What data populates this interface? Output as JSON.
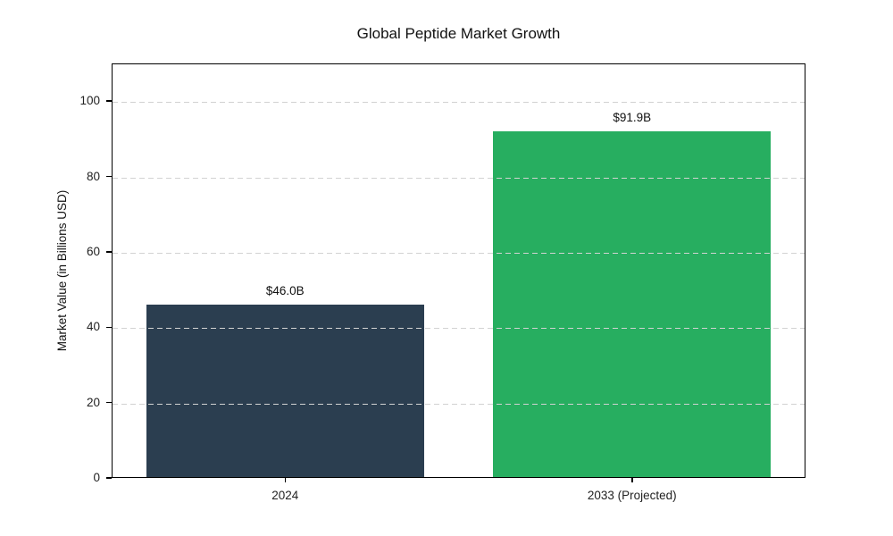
{
  "figure": {
    "background": "#ffffff"
  },
  "chart_data": {
    "type": "bar",
    "title": "Global Peptide Market Growth",
    "ylabel": "Market Value (in Billions USD)",
    "xlabel": "",
    "categories": [
      "2024",
      "2033 (Projected)"
    ],
    "values": [
      46.0,
      91.9
    ],
    "bar_labels": [
      "$46.0B",
      "$91.9B"
    ],
    "bar_colors": [
      "#2b3e50",
      "#27ae60"
    ],
    "yticks": [
      0,
      20,
      40,
      60,
      80,
      100
    ],
    "ylim": [
      0,
      110
    ],
    "grid": {
      "axis": "y",
      "style": "dashed",
      "color": "#d2d2d2",
      "drawn_above_bars": true
    },
    "legend_position": "none"
  }
}
